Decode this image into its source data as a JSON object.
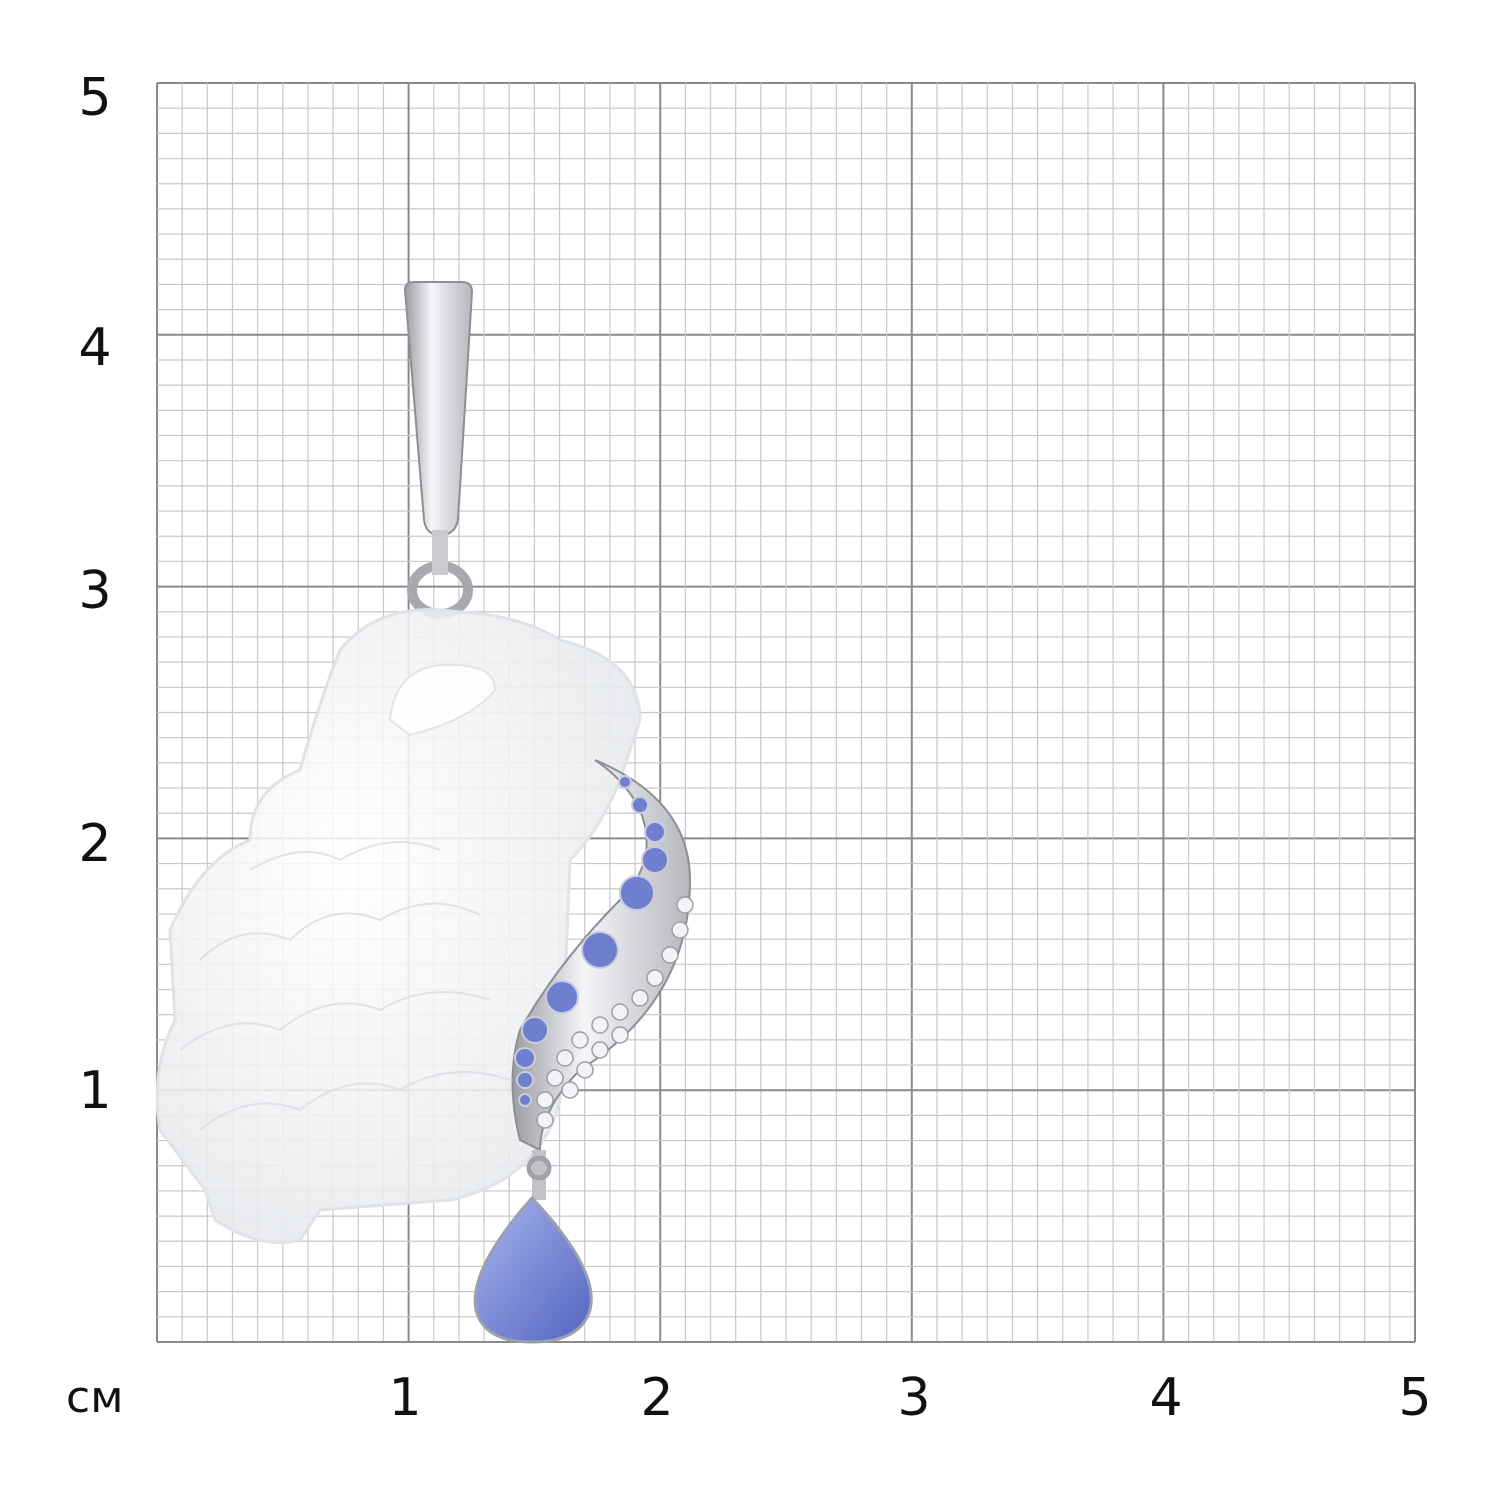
{
  "scale": {
    "unit_label": "см",
    "x_ticks": [
      "1",
      "2",
      "3",
      "4",
      "5"
    ],
    "y_ticks": [
      "5",
      "4",
      "3",
      "2",
      "1"
    ],
    "range_cm": [
      0,
      5
    ],
    "minor_divisions_per_cm": 10
  },
  "colors": {
    "major_grid": "#8a8a8a",
    "minor_grid": "#c8c8c8",
    "stone_blue": "#6f7fd0",
    "jade_white": "#eef0f2",
    "metal": "#d9dbe0"
  },
  "subject": {
    "icon": "aquarius-jug-pendant-icon"
  }
}
